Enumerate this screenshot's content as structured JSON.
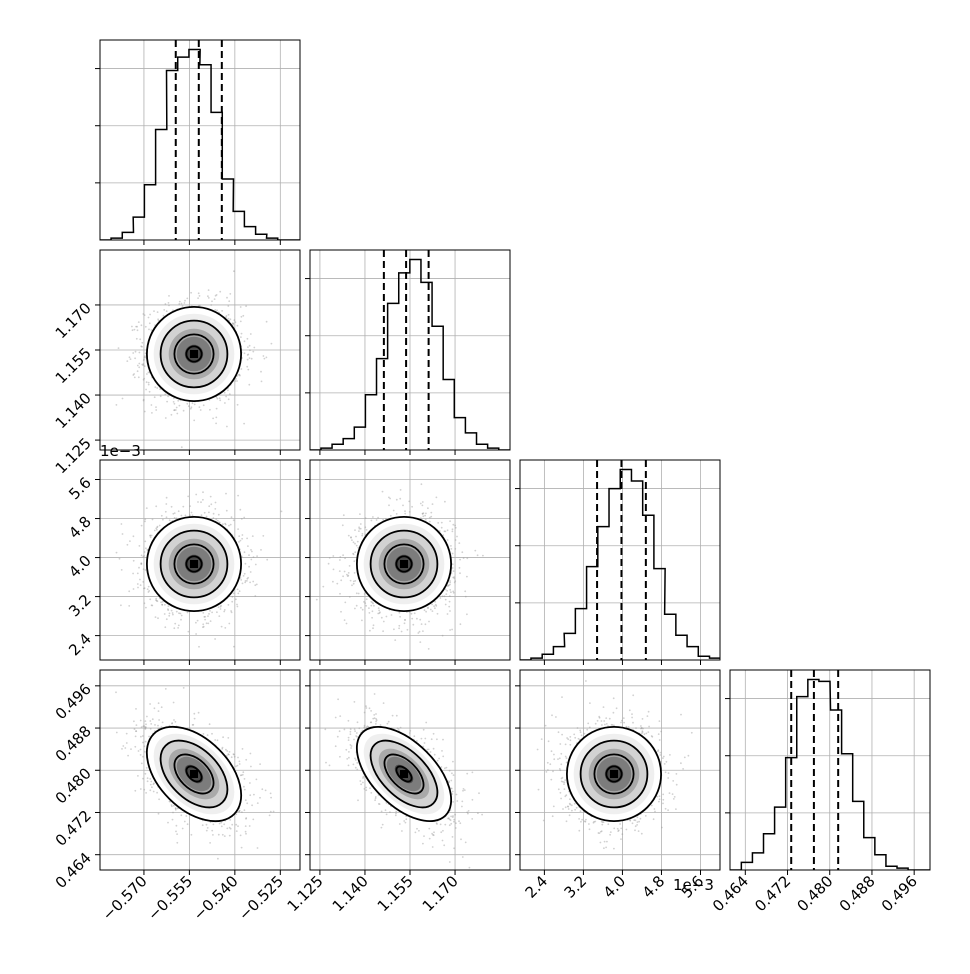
{
  "chart_data": {
    "type": "corner",
    "n_params": 4,
    "color": "#000000",
    "grid": true,
    "params": [
      {
        "range": [
          -0.5845,
          -0.5185
        ],
        "ticks": [
          -0.57,
          -0.555,
          -0.54,
          -0.525
        ],
        "tick_labels": [
          "−0.570",
          "−0.555",
          "−0.540",
          "−0.525"
        ],
        "offset_label": "",
        "quantiles": [
          -0.5595,
          -0.5519,
          -0.5443
        ],
        "hist_centers": [
          -0.5827,
          -0.579,
          -0.5753,
          -0.5717,
          -0.568,
          -0.5643,
          -0.5607,
          -0.557,
          -0.5533,
          -0.5497,
          -0.546,
          -0.5423,
          -0.5387,
          -0.535,
          -0.5313,
          -0.5277,
          -0.524,
          -0.5203
        ],
        "hist_values": [
          0,
          1,
          4,
          12,
          29,
          58,
          89,
          96,
          100,
          92,
          67,
          32,
          15,
          7,
          3,
          1,
          0,
          0
        ]
      },
      {
        "range": [
          1.1217,
          1.1883
        ],
        "ticks": [
          1.125,
          1.14,
          1.155,
          1.17
        ],
        "tick_labels": [
          "1.125",
          "1.140",
          "1.155",
          "1.170"
        ],
        "offset_label": "",
        "quantiles": [
          1.1463,
          1.1537,
          1.1612
        ],
        "hist_centers": [
          1.1235,
          1.1272,
          1.1309,
          1.1346,
          1.1383,
          1.142,
          1.1457,
          1.1494,
          1.1531,
          1.1568,
          1.1605,
          1.1642,
          1.1679,
          1.1716,
          1.1753,
          1.179,
          1.1827,
          1.1864
        ],
        "hist_values": [
          0,
          1,
          3,
          6,
          12,
          29,
          48,
          77,
          93,
          100,
          88,
          65,
          37,
          17,
          9,
          3,
          1,
          0
        ]
      },
      {
        "range": [
          1.9,
          6.0
        ],
        "ticks": [
          2.4,
          3.2,
          4.0,
          4.8,
          5.6
        ],
        "tick_labels": [
          "2.4",
          "3.2",
          "4.0",
          "4.8",
          "5.6"
        ],
        "offset_label": "1e−3",
        "quantiles": [
          3.48,
          3.98,
          4.48
        ],
        "hist_centers": [
          2.01,
          2.24,
          2.47,
          2.7,
          2.92,
          3.15,
          3.38,
          3.61,
          3.84,
          4.07,
          4.3,
          4.53,
          4.76,
          4.98,
          5.21,
          5.44,
          5.67,
          5.9
        ],
        "hist_values": [
          0,
          1,
          3,
          7,
          14,
          27,
          49,
          70,
          90,
          100,
          94,
          76,
          48,
          24,
          13,
          7,
          2,
          1
        ]
      },
      {
        "range": [
          0.4611,
          0.499
        ],
        "ticks": [
          0.464,
          0.472,
          0.48,
          0.488,
          0.496
        ],
        "tick_labels": [
          "0.464",
          "0.472",
          "0.480",
          "0.488",
          "0.496"
        ],
        "offset_label": "",
        "quantiles": [
          0.4727,
          0.477,
          0.4816
        ],
        "hist_centers": [
          0.4622,
          0.4643,
          0.4664,
          0.4685,
          0.4706,
          0.4727,
          0.4748,
          0.4769,
          0.479,
          0.4812,
          0.4833,
          0.4854,
          0.4875,
          0.4896,
          0.4917,
          0.4938,
          0.4959,
          0.498
        ],
        "hist_values": [
          0,
          4,
          9,
          19,
          33,
          59,
          91,
          100,
          99,
          84,
          61,
          36,
          17,
          8,
          2,
          1,
          0,
          0
        ]
      }
    ],
    "hist_yticks": [
      30,
      60,
      90
    ],
    "correlations": [
      [
        1.0,
        0.0,
        0.0,
        -0.45
      ],
      [
        0.0,
        1.0,
        0.0,
        -0.55
      ],
      [
        0.0,
        0.0,
        1.0,
        0.0
      ],
      [
        -0.45,
        -0.55,
        0.0,
        1.0
      ]
    ]
  }
}
